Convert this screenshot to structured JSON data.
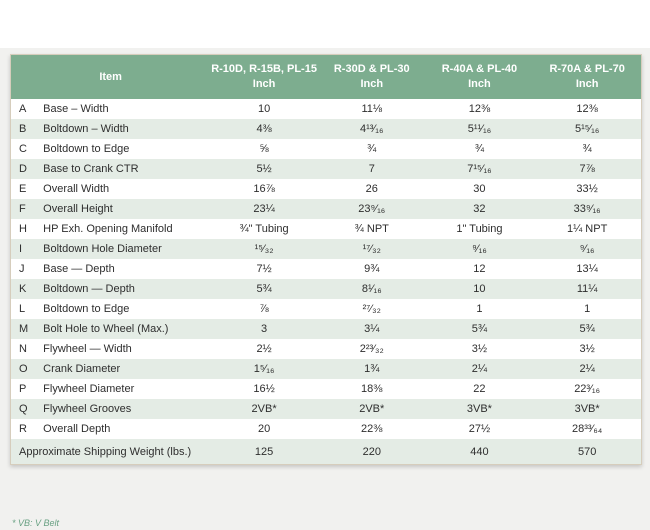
{
  "page": {
    "footnote": "* VB: V Belt"
  },
  "colors": {
    "header_green": "#7dad8f",
    "row_stripe_green": "#e4ece5",
    "page_background": "#f1f1ef",
    "card_border_tan": "#d6cdbc",
    "footnote_green": "#69a183",
    "text": "#2e2e2e"
  },
  "table": {
    "item_header": "Item",
    "columns": [
      {
        "model": "R-10D, R-15B, PL-15",
        "unit": "Inch"
      },
      {
        "model": "R-30D & PL-30",
        "unit": "Inch"
      },
      {
        "model": "R-40A & PL-40",
        "unit": "Inch"
      },
      {
        "model": "R-70A & PL-70",
        "unit": "Inch"
      }
    ],
    "rows": [
      {
        "letter": "A",
        "item": "Base – Width",
        "values": [
          "10",
          "11⅛",
          "12⅜",
          "12⅜"
        ]
      },
      {
        "letter": "B",
        "item": "Boltdown – Width",
        "values": [
          "4⅜",
          "4¹³⁄₁₆",
          "5¹¹⁄₁₆",
          "5¹⁵⁄₁₆"
        ]
      },
      {
        "letter": "C",
        "item": "Boltdown to Edge",
        "values": [
          "⅝",
          "¾",
          "¾",
          "¾"
        ]
      },
      {
        "letter": "D",
        "item": "Base to Crank CTR",
        "values": [
          "5½",
          "7",
          "7¹⁵⁄₁₆",
          "7⅞"
        ]
      },
      {
        "letter": "E",
        "item": "Overall Width",
        "values": [
          "16⅞",
          "26",
          "30",
          "33½"
        ]
      },
      {
        "letter": "F",
        "item": "Overall Height",
        "values": [
          "23¼",
          "23⁹⁄₁₆",
          "32",
          "33⁹⁄₁₆"
        ]
      },
      {
        "letter": "H",
        "item": "HP Exh. Opening Manifold",
        "values": [
          "¾\" Tubing",
          "¾ NPT",
          "1\" Tubing",
          "1¼ NPT"
        ]
      },
      {
        "letter": "I",
        "item": "Boltdown Hole Diameter",
        "values": [
          "¹⁵⁄₃₂",
          "¹⁷⁄₃₂",
          "⁹⁄₁₆",
          "⁹⁄₁₆"
        ]
      },
      {
        "letter": "J",
        "item": "Base — Depth",
        "values": [
          "7½",
          "9¾",
          "12",
          "13¼"
        ]
      },
      {
        "letter": "K",
        "item": "Boltdown — Depth",
        "values": [
          "5¾",
          "8¹⁄₁₆",
          "10",
          "11¼"
        ]
      },
      {
        "letter": "L",
        "item": "Boltdown to Edge",
        "values": [
          "⅞",
          "²⁷⁄₃₂",
          "1",
          "1"
        ]
      },
      {
        "letter": "M",
        "item": "Bolt Hole to Wheel (Max.)",
        "values": [
          "3",
          "3¼",
          "5¾",
          "5¾"
        ]
      },
      {
        "letter": "N",
        "item": "Flywheel — Width",
        "values": [
          "2½",
          "2²³⁄₃₂",
          "3½",
          "3½"
        ]
      },
      {
        "letter": "O",
        "item": "Crank Diameter",
        "values": [
          "1⁵⁄₁₆",
          "1¾",
          "2¼",
          "2¼"
        ]
      },
      {
        "letter": "P",
        "item": "Flywheel Diameter",
        "values": [
          "16½",
          "18⅜",
          "22",
          "22³⁄₁₆"
        ]
      },
      {
        "letter": "Q",
        "item": "Flywheel Grooves",
        "values": [
          "2VB*",
          "2VB*",
          "3VB*",
          "3VB*"
        ]
      },
      {
        "letter": "R",
        "item": "Overall Depth",
        "values": [
          "20",
          "22⅜",
          "27½",
          "28³³⁄₆₄"
        ]
      }
    ],
    "footer": {
      "label": "Approximate Shipping Weight (lbs.)",
      "values": [
        "125",
        "220",
        "440",
        "570"
      ]
    }
  }
}
